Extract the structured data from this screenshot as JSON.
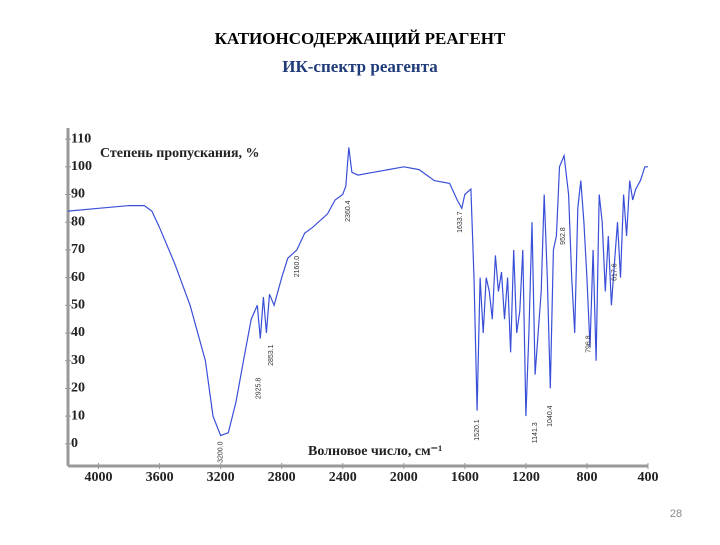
{
  "chart_data": {
    "type": "line",
    "title": "КАТИОНСОДЕРЖАЩИЙ РЕАГЕНТ",
    "subtitle": "ИК-спектр реагента",
    "y_label": "Степень пропускания, %",
    "x_label": "Волновое число, см⁻¹",
    "page_number": "28",
    "color": "#3a4fd8",
    "xlim": [
      4200,
      400
    ],
    "ylim": [
      -8,
      114
    ],
    "xticks": [
      4000,
      3600,
      3200,
      2800,
      2400,
      2000,
      1600,
      1200,
      800,
      400
    ],
    "yticks": [
      0,
      10,
      20,
      30,
      40,
      50,
      60,
      70,
      80,
      90,
      100,
      110
    ],
    "x": [
      4200,
      4000,
      3800,
      3700,
      3650,
      3600,
      3500,
      3400,
      3300,
      3250,
      3200,
      3150,
      3100,
      3050,
      3000,
      2960,
      2940,
      2920,
      2900,
      2880,
      2850,
      2800,
      2760,
      2700,
      2650,
      2600,
      2500,
      2450,
      2400,
      2380,
      2360,
      2340,
      2300,
      2200,
      2100,
      2000,
      1900,
      1800,
      1700,
      1650,
      1620,
      1600,
      1560,
      1540,
      1520,
      1500,
      1480,
      1460,
      1440,
      1420,
      1400,
      1380,
      1360,
      1340,
      1320,
      1300,
      1280,
      1260,
      1240,
      1220,
      1200,
      1180,
      1160,
      1140,
      1100,
      1080,
      1060,
      1040,
      1020,
      1000,
      980,
      950,
      920,
      900,
      880,
      860,
      840,
      820,
      800,
      780,
      760,
      740,
      720,
      700,
      680,
      660,
      640,
      620,
      600,
      580,
      560,
      540,
      520,
      500,
      480,
      450,
      420,
      400
    ],
    "values": [
      84,
      85,
      86,
      86,
      84,
      78,
      65,
      50,
      30,
      10,
      3,
      4,
      15,
      30,
      45,
      50,
      38,
      53,
      40,
      54,
      50,
      60,
      67,
      70,
      76,
      78,
      83,
      88,
      90,
      93,
      107,
      98,
      97,
      98,
      99,
      100,
      99,
      95,
      94,
      88,
      85,
      90,
      92,
      60,
      12,
      60,
      40,
      60,
      55,
      45,
      68,
      55,
      62,
      45,
      60,
      33,
      70,
      40,
      48,
      70,
      10,
      40,
      80,
      25,
      55,
      90,
      60,
      20,
      70,
      75,
      100,
      104,
      90,
      60,
      40,
      85,
      95,
      80,
      60,
      35,
      70,
      30,
      90,
      80,
      55,
      75,
      50,
      65,
      80,
      60,
      90,
      75,
      95,
      88,
      92,
      95,
      100,
      100
    ],
    "annotations": [
      {
        "text": "3200.0",
        "x": 3200,
        "y": -3
      },
      {
        "text": "2925.8",
        "x": 2950,
        "y": 20
      },
      {
        "text": "2853.1",
        "x": 2870,
        "y": 32
      },
      {
        "text": "2160.0",
        "x": 2700,
        "y": 64
      },
      {
        "text": "2360.4",
        "x": 2365,
        "y": 84
      },
      {
        "text": "1633.7",
        "x": 1630,
        "y": 80
      },
      {
        "text": "1520.1",
        "x": 1520,
        "y": 5
      },
      {
        "text": "1141.3",
        "x": 1140,
        "y": 4
      },
      {
        "text": "1040.4",
        "x": 1040,
        "y": 10
      },
      {
        "text": "952.8",
        "x": 955,
        "y": 75
      },
      {
        "text": "796.8",
        "x": 790,
        "y": 36
      },
      {
        "text": "617.6",
        "x": 620,
        "y": 62
      }
    ]
  }
}
